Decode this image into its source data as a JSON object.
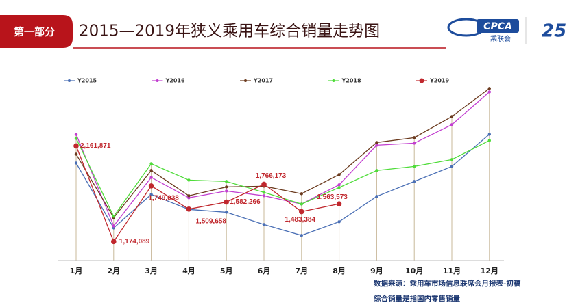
{
  "header": {
    "section": "第一部分",
    "title": "2015—2019年狭义乘用车综合销量走势图",
    "logo": [
      "CPCA",
      "乘联会"
    ]
  },
  "chart_data": {
    "type": "line",
    "categories": [
      "1月",
      "2月",
      "3月",
      "4月",
      "5月",
      "6月",
      "7月",
      "8月",
      "9月",
      "10月",
      "11月",
      "12月"
    ],
    "ylim": [
      1000000,
      2800000
    ],
    "series": [
      {
        "name": "Y2015",
        "color": "#4a6fb5",
        "values": [
          1985000,
          1315000,
          1661000,
          1506000,
          1477000,
          1350000,
          1238000,
          1379000,
          1640000,
          1795000,
          1950000,
          2282000
        ]
      },
      {
        "name": "Y2016",
        "color": "#c23fd0",
        "values": [
          2282000,
          1336000,
          1837000,
          1626000,
          1696000,
          1647000,
          1562000,
          1760000,
          2169000,
          2190000,
          2381000,
          2719000
        ]
      },
      {
        "name": "Y2017",
        "color": "#6b3a1e",
        "values": [
          2077000,
          1421000,
          1908000,
          1647000,
          1738000,
          1746000,
          1668000,
          1866000,
          2197000,
          2247000,
          2465000,
          2755000
        ]
      },
      {
        "name": "Y2018",
        "color": "#4fdc3a",
        "values": [
          2240000,
          1435000,
          1978000,
          1809000,
          1795000,
          1682000,
          1562000,
          1732000,
          1908000,
          1950000,
          2021000,
          2218000
        ]
      },
      {
        "name": "Y2019",
        "color": "#c0272d",
        "values": [
          2161871,
          1174089,
          1749038,
          1509658,
          1582266,
          1766173,
          1483384,
          1563573,
          null,
          null,
          null,
          null
        ],
        "value_labels": [
          "2,161,871",
          "1,174,089",
          "1,749,038",
          "1,509,658",
          "1,582,266",
          "1,766,173",
          "1,483,384",
          "1,563,573",
          null,
          null,
          null,
          null
        ]
      }
    ],
    "notes": [
      "数据来源：乘用车市场信息联席会月报表-初稿",
      "综合销量是指国内零售销量"
    ]
  }
}
